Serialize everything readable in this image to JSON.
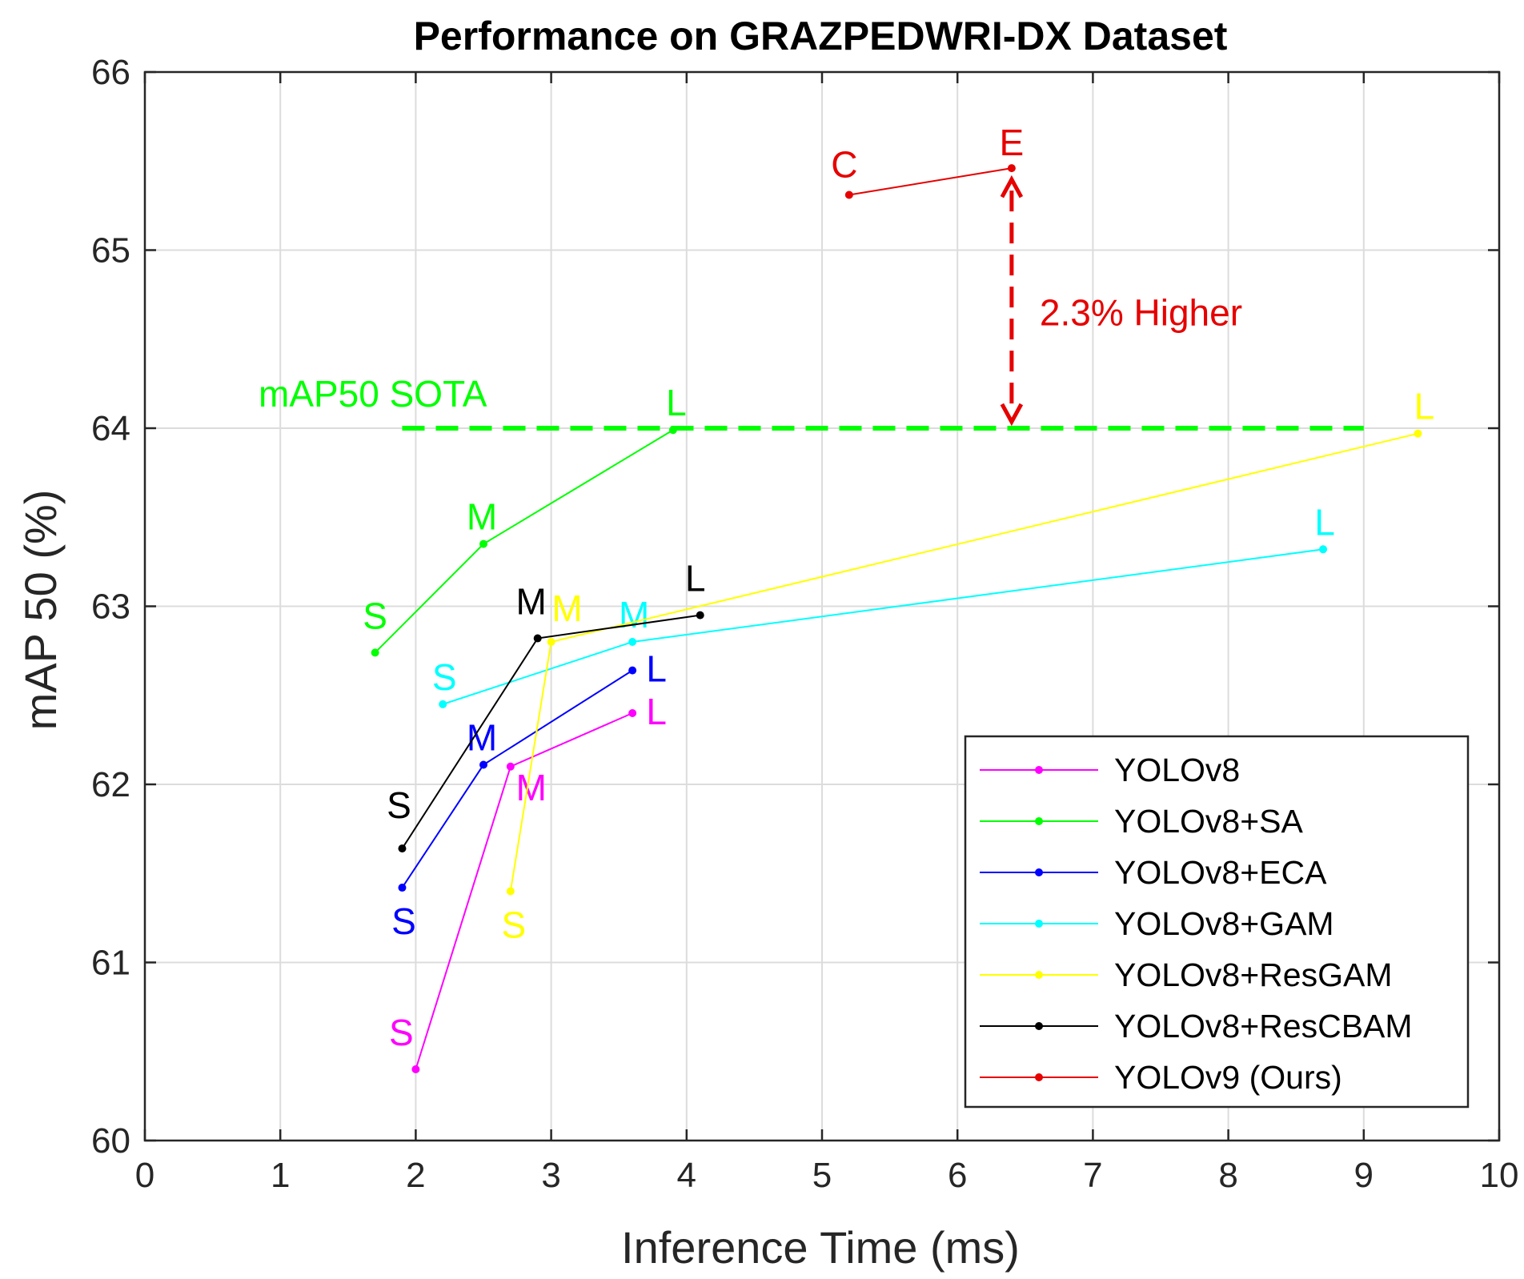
{
  "chart_data": {
    "type": "line",
    "title": "Performance on GRAZPEDWRI-DX Dataset",
    "xlabel": "Inference Time (ms)",
    "ylabel": "mAP 50 (%)",
    "xlim": [
      0,
      10
    ],
    "ylim": [
      60,
      66
    ],
    "x_ticks": [
      0,
      1,
      2,
      3,
      4,
      5,
      6,
      7,
      8,
      9,
      10
    ],
    "y_ticks": [
      60,
      61,
      62,
      63,
      64,
      65,
      66
    ],
    "grid": true,
    "legend_position": "bottom-right",
    "series": [
      {
        "name": "YOLOv8",
        "color": "#ff00ff",
        "points": [
          {
            "x": 2.0,
            "y": 60.4,
            "label": "S"
          },
          {
            "x": 2.7,
            "y": 62.1,
            "label": "M"
          },
          {
            "x": 3.6,
            "y": 62.4,
            "label": "L"
          }
        ]
      },
      {
        "name": "YOLOv8+SA",
        "color": "#00ff00",
        "points": [
          {
            "x": 1.7,
            "y": 62.74,
            "label": "S"
          },
          {
            "x": 2.5,
            "y": 63.35,
            "label": "M"
          },
          {
            "x": 3.9,
            "y": 63.99,
            "label": "L"
          }
        ]
      },
      {
        "name": "YOLOv8+ECA",
        "color": "#0000ff",
        "points": [
          {
            "x": 1.9,
            "y": 61.42,
            "label": "S"
          },
          {
            "x": 2.5,
            "y": 62.11,
            "label": "M"
          },
          {
            "x": 3.6,
            "y": 62.64,
            "label": "L"
          }
        ]
      },
      {
        "name": "YOLOv8+GAM",
        "color": "#00ffff",
        "points": [
          {
            "x": 2.2,
            "y": 62.45,
            "label": "S"
          },
          {
            "x": 3.6,
            "y": 62.8,
            "label": "M"
          },
          {
            "x": 8.7,
            "y": 63.32,
            "label": "L"
          }
        ]
      },
      {
        "name": "YOLOv8+ResGAM",
        "color": "#ffff00",
        "points": [
          {
            "x": 2.7,
            "y": 61.4,
            "label": "S"
          },
          {
            "x": 3.0,
            "y": 62.8,
            "label": "M"
          },
          {
            "x": 9.4,
            "y": 63.97,
            "label": "L"
          }
        ]
      },
      {
        "name": "YOLOv8+ResCBAM",
        "color": "#000000",
        "points": [
          {
            "x": 1.9,
            "y": 61.64,
            "label": "S"
          },
          {
            "x": 2.9,
            "y": 62.82,
            "label": "M"
          },
          {
            "x": 4.1,
            "y": 62.95,
            "label": "L"
          }
        ]
      },
      {
        "name": "YOLOv9 (Ours)",
        "color": "#e60000",
        "points": [
          {
            "x": 5.2,
            "y": 65.31,
            "label": "C"
          },
          {
            "x": 6.4,
            "y": 65.46,
            "label": "E"
          }
        ]
      }
    ],
    "sota_line": {
      "label": "mAP50 SOTA",
      "y": 64.0,
      "x_range": [
        1.9,
        9.0
      ],
      "color": "#00ff00"
    },
    "annotation": {
      "text": "2.3% Higher",
      "x": 6.4,
      "y_from": 64.0,
      "y_to": 65.46,
      "color": "#e60000"
    }
  }
}
